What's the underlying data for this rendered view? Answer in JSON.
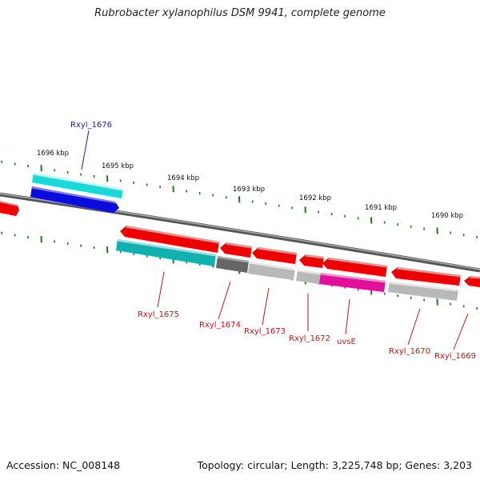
{
  "title": "Rubrobacter xylanophilus DSM 9941, complete genome",
  "footer": {
    "accession": "Accession: NC_008148",
    "summary": "Topology: circular; Length: 3,225,748 bp; Genes: 3,203"
  },
  "colors": {
    "backbone": "#888888",
    "tick": "#1e7a1e",
    "forward_label": "#1a1ab8",
    "reverse_label": "#cc1111",
    "red": "#ee0000",
    "blue": "#0b0bdd",
    "cyan": "#1ad9d9",
    "teal": "#13b0b0",
    "dark_gray": "#666666",
    "light_gray": "#b8b8b8",
    "magenta": "#e0109a"
  },
  "scale_labels": [
    "1696 kbp",
    "1695 kbp",
    "1694 kbp",
    "1693 kbp",
    "1692 kbp",
    "1691 kbp",
    "1690 kbp"
  ],
  "gene_labels": [
    {
      "text": "Rxyl_1676",
      "strand": "forward"
    },
    {
      "text": "Rxyl_1675",
      "strand": "reverse"
    },
    {
      "text": "Rxyl_1674",
      "strand": "reverse"
    },
    {
      "text": "Rxyl_1673",
      "strand": "reverse"
    },
    {
      "text": "Rxyl_1672",
      "strand": "reverse"
    },
    {
      "text": "uvsE",
      "strand": "reverse"
    },
    {
      "text": "Rxyl_1670",
      "strand": "reverse"
    },
    {
      "text": "Rxyl_1669",
      "strand": "reverse"
    }
  ]
}
